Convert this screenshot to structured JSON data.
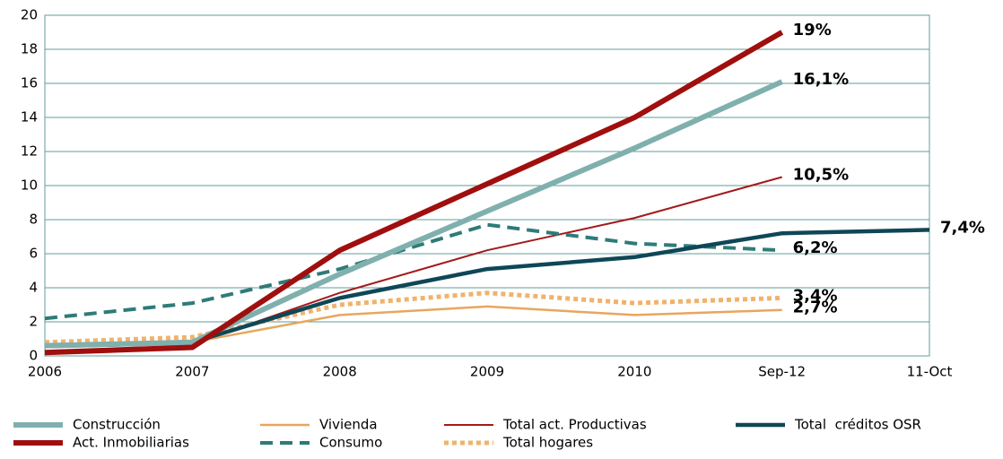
{
  "chart_data": {
    "type": "line",
    "categories": [
      "2006",
      "2007",
      "2008",
      "2009",
      "2010",
      "Sep-12",
      "11-Oct"
    ],
    "ylim": [
      0,
      20
    ],
    "yticks": [
      0,
      2,
      4,
      6,
      8,
      10,
      12,
      14,
      16,
      18,
      20
    ],
    "grid": true,
    "grid_color": "#5f9e9b",
    "series": [
      {
        "name": "Construcción",
        "color": "#7fb0ae",
        "width": 6,
        "dash": "solid",
        "label_color": "#2f7b78",
        "values": [
          0.6,
          0.8,
          4.8,
          8.5,
          12.2,
          16.1,
          null
        ],
        "value_labels": [
          null,
          null,
          null,
          null,
          null,
          "16,1%",
          null
        ]
      },
      {
        "name": "Vivienda",
        "color": "#e8a65e",
        "width": 2.5,
        "dash": "solid",
        "label_color": "#a86a24",
        "values": [
          0.7,
          0.8,
          2.4,
          2.9,
          2.4,
          2.7,
          null
        ],
        "value_labels": [
          null,
          null,
          null,
          null,
          null,
          "2,7%",
          null
        ]
      },
      {
        "name": "Total act. Productivas",
        "color": "#a31a1a",
        "width": 2,
        "dash": "solid",
        "label_color": "#a31a1a",
        "values": [
          0.5,
          0.7,
          3.7,
          6.2,
          8.1,
          10.5,
          null
        ],
        "value_labels": [
          null,
          null,
          null,
          null,
          null,
          "10,5%",
          null
        ]
      },
      {
        "name": "Total  créditos OSR",
        "color": "#0e4757",
        "width": 4.5,
        "dash": "solid",
        "label_color": "#0e4757",
        "values": [
          0.6,
          0.8,
          3.4,
          5.1,
          5.8,
          7.2,
          7.4
        ],
        "value_labels": [
          null,
          null,
          null,
          null,
          null,
          null,
          "7,4%"
        ]
      },
      {
        "name": "Act. Inmobiliarias",
        "color": "#a00e0e",
        "width": 6,
        "dash": "solid",
        "label_color": "#a00e0e",
        "values": [
          0.2,
          0.5,
          6.2,
          10.1,
          14,
          19,
          null
        ],
        "value_labels": [
          null,
          null,
          null,
          null,
          null,
          "19%",
          null
        ]
      },
      {
        "name": "Consumo",
        "color": "#2f7b78",
        "width": 4,
        "dash": "dashed",
        "label_color": "#2f7b78",
        "values": [
          2.2,
          3.1,
          5.1,
          7.7,
          6.6,
          6.2,
          null
        ],
        "value_labels": [
          null,
          null,
          null,
          null,
          null,
          "6,2%",
          null
        ]
      },
      {
        "name": "Total hogares",
        "color": "#f0b36c",
        "width": 5,
        "dash": "dotted",
        "label_color": "#b07a30",
        "values": [
          0.8,
          1.1,
          3.0,
          3.7,
          3.1,
          3.4,
          null
        ],
        "value_labels": [
          null,
          null,
          null,
          null,
          null,
          "3,4%",
          null
        ]
      }
    ]
  }
}
